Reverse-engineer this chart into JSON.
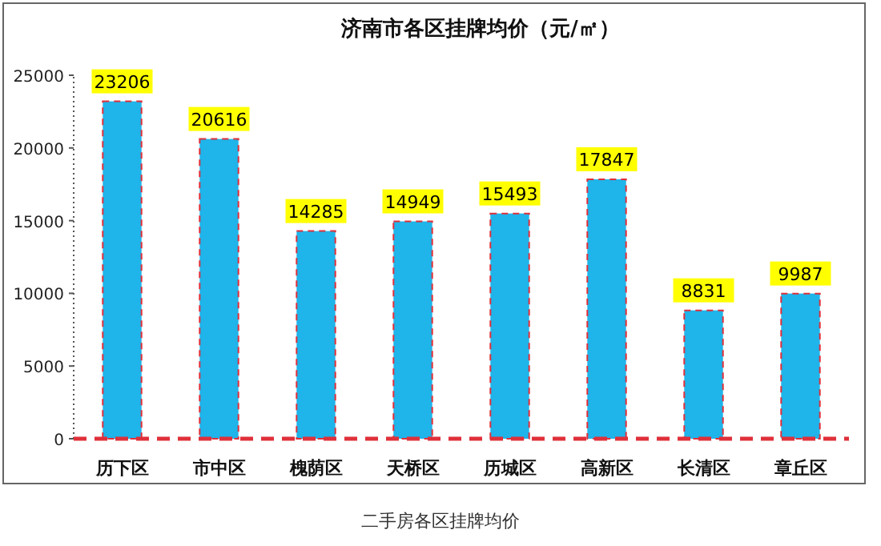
{
  "chart_data": {
    "type": "bar",
    "title": "济南市各区挂牌均价（元/㎡）",
    "categories": [
      "历下区",
      "市中区",
      "槐荫区",
      "天桥区",
      "历城区",
      "高新区",
      "长清区",
      "章丘区"
    ],
    "values": [
      23206,
      20616,
      14285,
      14949,
      15493,
      17847,
      8831,
      9987
    ],
    "color": "#1fb4ea",
    "data_labels": true,
    "ylim": [
      0,
      25000
    ],
    "yticks": [
      0,
      5000,
      10000,
      15000,
      20000,
      25000
    ],
    "grid": false,
    "annotations": [
      "二手房各区挂牌均价"
    ]
  }
}
